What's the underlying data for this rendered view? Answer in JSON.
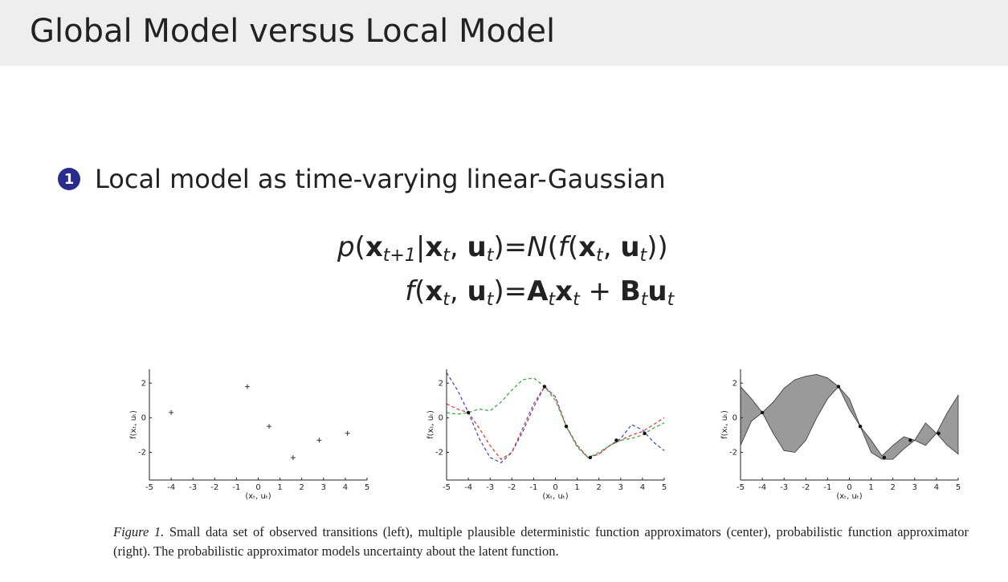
{
  "header": {
    "title": "Global Model versus Local Model"
  },
  "bullet": {
    "number": "1",
    "text": "Local model as time-varying linear-Gaussian"
  },
  "equations": [
    {
      "lhs": [
        {
          "text": "p",
          "italic": true
        },
        {
          "text": "("
        },
        {
          "text": "x",
          "bold": true,
          "sub": "t+1"
        },
        {
          "text": "|"
        },
        {
          "text": "x",
          "bold": true,
          "sub": "t"
        },
        {
          "text": ", "
        },
        {
          "text": "u",
          "bold": true,
          "sub": "t"
        },
        {
          "text": ")"
        }
      ],
      "rhs": [
        {
          "text": "="
        },
        {
          "text": "N",
          "italic": true
        },
        {
          "text": "("
        },
        {
          "text": "f",
          "italic": true
        },
        {
          "text": "("
        },
        {
          "text": "x",
          "bold": true,
          "sub": "t"
        },
        {
          "text": ", "
        },
        {
          "text": "u",
          "bold": true,
          "sub": "t"
        },
        {
          "text": "))"
        }
      ]
    },
    {
      "lhs": [
        {
          "text": "f",
          "italic": true
        },
        {
          "text": "("
        },
        {
          "text": "x",
          "bold": true,
          "sub": "t"
        },
        {
          "text": ", "
        },
        {
          "text": "u",
          "bold": true,
          "sub": "t"
        },
        {
          "text": ")"
        }
      ],
      "rhs": [
        {
          "text": "="
        },
        {
          "text": "A",
          "bold": true,
          "sub": "t"
        },
        {
          "text": "x",
          "bold": true,
          "sub": "t"
        },
        {
          "text": " + "
        },
        {
          "text": "B",
          "bold": true,
          "sub": "t"
        },
        {
          "text": "u",
          "bold": true,
          "sub": "t"
        }
      ]
    }
  ],
  "chart_data": [
    {
      "type": "scatter",
      "xlabel": "(xₜ, uₜ)",
      "ylabel": "f(xₜ, uₜ)",
      "x": [
        -4,
        -0.5,
        0.5,
        1.6,
        2.8,
        4.1
      ],
      "y": [
        0.3,
        1.8,
        -0.5,
        -2.3,
        -1.3,
        -0.9
      ],
      "marker": "plus",
      "color": "#333333",
      "xlim": [
        -5,
        5
      ],
      "ylim": [
        -3.6,
        2.8
      ],
      "xticks": [
        -5,
        -4,
        -3,
        -2,
        -1,
        0,
        1,
        2,
        3,
        4,
        5
      ],
      "yticks": [
        -2,
        0,
        2
      ]
    },
    {
      "type": "line",
      "xlabel": "(xₜ, uₜ)",
      "ylabel": "f(xₜ, uₜ)",
      "x": [
        -5,
        -4.5,
        -4,
        -3.5,
        -3,
        -2.5,
        -2,
        -1.5,
        -1,
        -0.5,
        0,
        0.5,
        1,
        1.5,
        2,
        2.5,
        3,
        3.5,
        4,
        4.5,
        5
      ],
      "series": [
        {
          "color": "#3344dd",
          "values": [
            2.6,
            1.6,
            0.3,
            -1.2,
            -2.3,
            -2.6,
            -2.0,
            -0.8,
            0.6,
            1.8,
            1.2,
            -0.5,
            -1.6,
            -2.3,
            -2.1,
            -1.6,
            -1.2,
            -0.4,
            -0.7,
            -1.4,
            -1.9
          ]
        },
        {
          "color": "#dd3333",
          "values": [
            0.8,
            0.5,
            0.3,
            -0.6,
            -1.6,
            -2.4,
            -2.0,
            -0.6,
            0.8,
            1.8,
            1.2,
            -0.5,
            -1.6,
            -2.3,
            -2.1,
            -1.6,
            -1.3,
            -1.0,
            -0.8,
            -0.4,
            0.0
          ]
        },
        {
          "color": "#33aa33",
          "values": [
            0.3,
            0.2,
            0.3,
            0.5,
            0.4,
            0.9,
            1.6,
            2.2,
            2.3,
            1.8,
            1.0,
            -0.5,
            -1.7,
            -2.3,
            -2.0,
            -1.6,
            -1.3,
            -1.2,
            -1.0,
            -0.6,
            -0.3
          ]
        }
      ],
      "points": {
        "x": [
          -4,
          -0.5,
          0.5,
          1.6,
          2.8,
          4.1
        ],
        "y": [
          0.3,
          1.8,
          -0.5,
          -2.3,
          -1.3,
          -0.9
        ],
        "marker": "dot"
      },
      "xlim": [
        -5,
        5
      ],
      "ylim": [
        -3.6,
        2.8
      ],
      "xticks": [
        -5,
        -4,
        -3,
        -2,
        -1,
        0,
        1,
        2,
        3,
        4,
        5
      ],
      "yticks": [
        -2,
        0,
        2
      ]
    },
    {
      "type": "area",
      "xlabel": "(xₜ, uₜ)",
      "ylabel": "f(xₜ, uₜ)",
      "color": "#9a9a9a",
      "x": [
        -5,
        -4.5,
        -4,
        -3.5,
        -3,
        -2.5,
        -2,
        -1.5,
        -1,
        -0.5,
        0,
        0.5,
        1,
        1.5,
        2,
        2.5,
        3,
        3.5,
        4,
        4.5,
        5
      ],
      "upper": [
        1.8,
        1.1,
        0.3,
        0.9,
        1.7,
        2.2,
        2.4,
        2.5,
        2.3,
        1.8,
        1.1,
        -0.5,
        -1.3,
        -2.2,
        -1.6,
        -1.1,
        -1.3,
        -0.3,
        -0.9,
        0.3,
        1.3
      ],
      "lower": [
        -1.6,
        -0.2,
        0.3,
        -0.9,
        -1.9,
        -2.0,
        -1.3,
        0.0,
        1.1,
        1.8,
        0.5,
        -0.5,
        -2.0,
        -2.4,
        -2.4,
        -1.8,
        -1.3,
        -1.6,
        -0.9,
        -1.6,
        -2.1
      ],
      "points": {
        "x": [
          -4,
          -0.5,
          0.5,
          1.6,
          2.8,
          4.1
        ],
        "y": [
          0.3,
          1.8,
          -0.5,
          -2.3,
          -1.3,
          -0.9
        ],
        "marker": "dot"
      },
      "xlim": [
        -5,
        5
      ],
      "ylim": [
        -3.6,
        2.8
      ],
      "xticks": [
        -5,
        -4,
        -3,
        -2,
        -1,
        0,
        1,
        2,
        3,
        4,
        5
      ],
      "yticks": [
        -2,
        0,
        2
      ]
    }
  ],
  "caption": {
    "label": "Figure 1.",
    "text": "Small data set of observed transitions (left), multiple plausible deterministic function approximators (center), probabilistic function approximator (right). The probabilistic approximator models uncertainty about the latent function."
  }
}
